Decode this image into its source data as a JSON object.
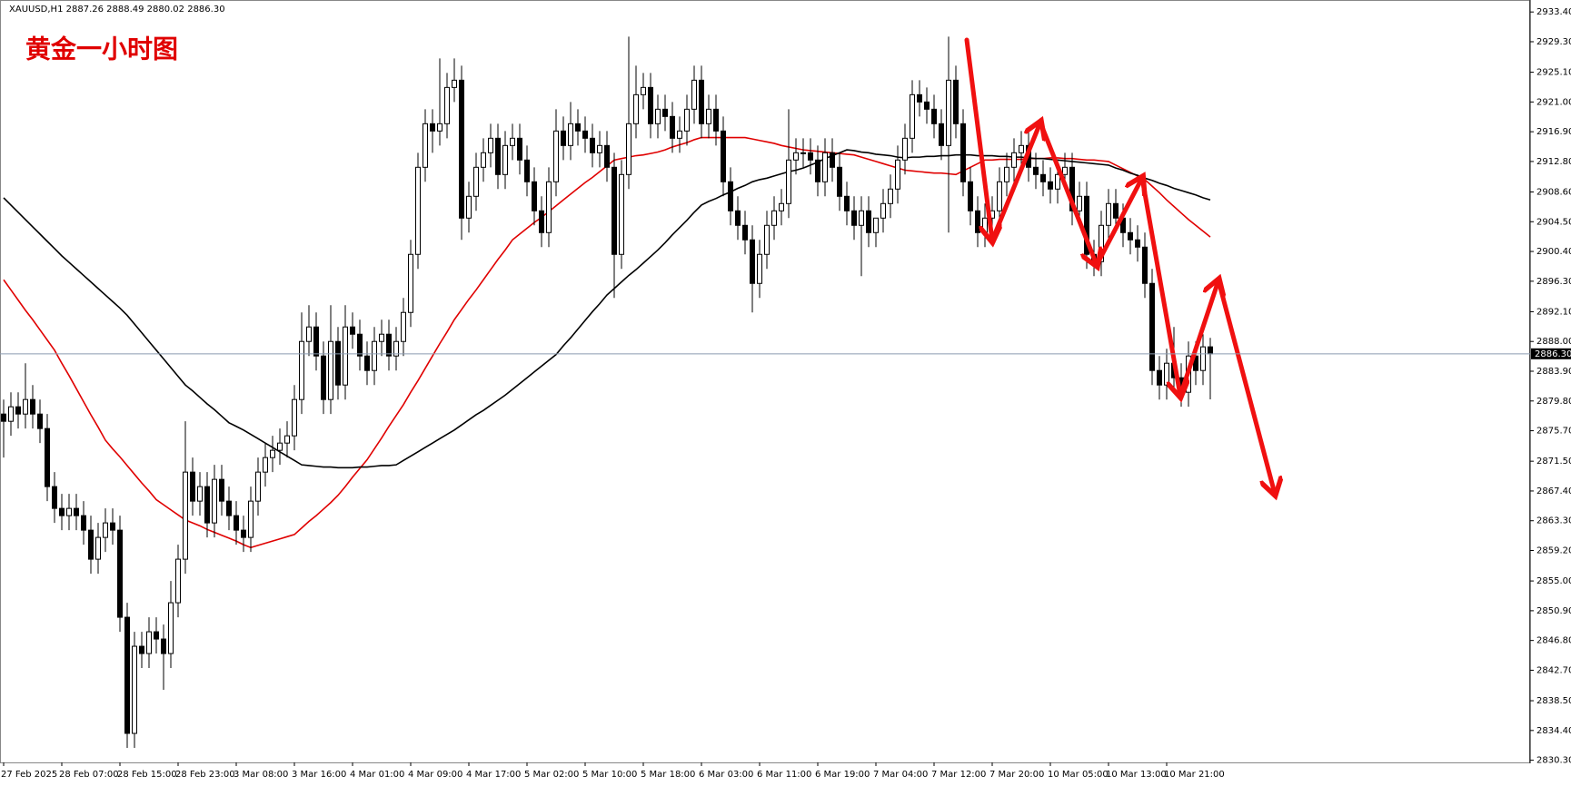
{
  "chart_data": {
    "type": "candlestick",
    "header": "XAUUSD,H1  2887.26 2888.49 2880.02 2886.30",
    "title": "黄金一小时图",
    "ylim": [
      2830.0,
      2934.8
    ],
    "yticks": [
      {
        "value": 2933.4,
        "label": "2933.40"
      },
      {
        "value": 2929.3,
        "label": "2929.30"
      },
      {
        "value": 2925.1,
        "label": "2925.10"
      },
      {
        "value": 2921.0,
        "label": "2921.00"
      },
      {
        "value": 2916.9,
        "label": "2916.90"
      },
      {
        "value": 2912.8,
        "label": "2912.80"
      },
      {
        "value": 2908.6,
        "label": "2908.60"
      },
      {
        "value": 2904.5,
        "label": "2904.50"
      },
      {
        "value": 2900.4,
        "label": "2900.40"
      },
      {
        "value": 2896.3,
        "label": "2896.30"
      },
      {
        "value": 2892.1,
        "label": "2892.10"
      },
      {
        "value": 2888.0,
        "label": "2888.00"
      },
      {
        "value": 2883.9,
        "label": "2883.90"
      },
      {
        "value": 2879.8,
        "label": "2879.80"
      },
      {
        "value": 2875.7,
        "label": "2875.70"
      },
      {
        "value": 2871.5,
        "label": "2871.50"
      },
      {
        "value": 2867.4,
        "label": "2867.40"
      },
      {
        "value": 2863.3,
        "label": "2863.30"
      },
      {
        "value": 2859.2,
        "label": "2859.20"
      },
      {
        "value": 2855.0,
        "label": "2855.00"
      },
      {
        "value": 2850.9,
        "label": "2850.90"
      },
      {
        "value": 2846.8,
        "label": "2846.80"
      },
      {
        "value": 2842.7,
        "label": "2842.70"
      },
      {
        "value": 2838.5,
        "label": "2838.50"
      },
      {
        "value": 2834.4,
        "label": "2834.40"
      },
      {
        "value": 2830.3,
        "label": "2830.30"
      }
    ],
    "price_line": {
      "value": 2886.3,
      "label": "2886.30"
    },
    "categories": [
      "27 Feb 2025",
      null,
      null,
      null,
      null,
      null,
      null,
      null,
      "28 Feb 07:00",
      null,
      null,
      null,
      null,
      null,
      null,
      null,
      "28 Feb 15:00",
      null,
      null,
      null,
      null,
      null,
      null,
      null,
      "28 Feb 23:00",
      null,
      null,
      null,
      null,
      null,
      null,
      null,
      "3 Mar 08:00",
      null,
      null,
      null,
      null,
      null,
      null,
      null,
      "3 Mar 16:00",
      null,
      null,
      null,
      null,
      null,
      null,
      null,
      "4 Mar 01:00",
      null,
      null,
      null,
      null,
      null,
      null,
      null,
      "4 Mar 09:00",
      null,
      null,
      null,
      null,
      null,
      null,
      null,
      "4 Mar 17:00",
      null,
      null,
      null,
      null,
      null,
      null,
      null,
      "5 Mar 02:00",
      null,
      null,
      null,
      null,
      null,
      null,
      null,
      "5 Mar 10:00",
      null,
      null,
      null,
      null,
      null,
      null,
      null,
      "5 Mar 18:00",
      null,
      null,
      null,
      null,
      null,
      null,
      null,
      "6 Mar 03:00",
      null,
      null,
      null,
      null,
      null,
      null,
      null,
      "6 Mar 11:00",
      null,
      null,
      null,
      null,
      null,
      null,
      null,
      "6 Mar 19:00",
      null,
      null,
      null,
      null,
      null,
      null,
      null,
      "7 Mar 04:00",
      null,
      null,
      null,
      null,
      null,
      null,
      null,
      "7 Mar 12:00",
      null,
      null,
      null,
      null,
      null,
      null,
      null,
      "7 Mar 20:00",
      null,
      null,
      null,
      null,
      null,
      null,
      null,
      "10 Mar 05:00",
      null,
      null,
      null,
      null,
      null,
      null,
      null,
      "10 Mar 13:00",
      null,
      null,
      null,
      null,
      null,
      null,
      null,
      "10 Mar 21:00",
      null,
      null,
      null,
      null,
      null,
      null
    ],
    "open": [
      2878,
      2877,
      2879,
      2878,
      2880,
      2878,
      2876,
      2868,
      2865,
      2864,
      2865,
      2864,
      2862,
      2858,
      2861,
      2863,
      2862,
      2850,
      2834,
      2846,
      2845,
      2848,
      2847,
      2845,
      2852,
      2858,
      2870,
      2866,
      2868,
      2863,
      2869,
      2866,
      2864,
      2862,
      2861,
      2866,
      2870,
      2872,
      2873,
      2874,
      2875,
      2880,
      2888,
      2890,
      2886,
      2880,
      2888,
      2882,
      2890,
      2889,
      2886,
      2884,
      2888,
      2889,
      2886,
      2888,
      2892,
      2900,
      2912,
      2918,
      2917,
      2918,
      2923,
      2924,
      2905,
      2908,
      2912,
      2914,
      2916,
      2911,
      2915,
      2916,
      2913,
      2910,
      2906,
      2903,
      2910,
      2917,
      2915,
      2918,
      2917,
      2916,
      2914,
      2915,
      2912,
      2900,
      2911,
      2918,
      2922,
      2923,
      2918,
      2920,
      2919,
      2916,
      2917,
      2920,
      2924,
      2918,
      2920,
      2917,
      2910,
      2906,
      2904,
      2902,
      2896,
      2900,
      2904,
      2906,
      2907,
      2913,
      2914,
      2914,
      2913,
      2910,
      2914,
      2912,
      2908,
      2906,
      2904,
      2906,
      2903,
      2905,
      2907,
      2909,
      2913,
      2916,
      2922,
      2921,
      2920,
      2918,
      2915,
      2924,
      2918,
      2910,
      2906,
      2903,
      2905,
      2906,
      2910,
      2912,
      2914,
      2915,
      2912,
      2911,
      2910,
      2909,
      2911,
      2912,
      2906,
      2908,
      2900,
      2899,
      2904,
      2907,
      2905,
      2903,
      2902,
      2901,
      2896,
      2884,
      2882,
      2885,
      2883,
      2881,
      2886,
      2884,
      2887.26
    ],
    "high": [
      2880,
      2881,
      2881,
      2885,
      2882,
      2880,
      2878,
      2870,
      2867,
      2867,
      2867,
      2866,
      2864,
      2863,
      2865,
      2865,
      2864,
      2852,
      2848,
      2848,
      2850,
      2850,
      2849,
      2855,
      2860,
      2877,
      2872,
      2870,
      2870,
      2871,
      2871,
      2868,
      2866,
      2864,
      2868,
      2872,
      2874,
      2875,
      2876,
      2877,
      2882,
      2892,
      2893,
      2892,
      2888,
      2893,
      2890,
      2893,
      2892,
      2891,
      2888,
      2890,
      2891,
      2891,
      2890,
      2894,
      2902,
      2914,
      2920,
      2920,
      2927,
      2925,
      2927,
      2926,
      2910,
      2914,
      2916,
      2918,
      2918,
      2917,
      2918,
      2918,
      2915,
      2912,
      2908,
      2912,
      2920,
      2919,
      2921,
      2920,
      2919,
      2918,
      2917,
      2917,
      2914,
      2913,
      2930,
      2926,
      2925,
      2925,
      2922,
      2922,
      2921,
      2919,
      2922,
      2926,
      2926,
      2922,
      2922,
      2919,
      2912,
      2908,
      2906,
      2904,
      2902,
      2906,
      2908,
      2909,
      2920,
      2916,
      2916,
      2916,
      2915,
      2916,
      2916,
      2914,
      2910,
      2908,
      2908,
      2908,
      2905,
      2909,
      2911,
      2915,
      2918,
      2924,
      2924,
      2923,
      2922,
      2920,
      2930,
      2926,
      2920,
      2912,
      2908,
      2907,
      2908,
      2912,
      2914,
      2916,
      2917,
      2917,
      2914,
      2913,
      2912,
      2913,
      2914,
      2914,
      2910,
      2910,
      2902,
      2906,
      2909,
      2909,
      2907,
      2905,
      2904,
      2903,
      2898,
      2886,
      2887,
      2890,
      2885,
      2888,
      2888,
      2889,
      2888.49
    ],
    "low": [
      2872,
      2875,
      2876,
      2876,
      2876,
      2874,
      2866,
      2863,
      2862,
      2862,
      2862,
      2860,
      2856,
      2856,
      2859,
      2860,
      2848,
      2832,
      2832,
      2843,
      2843,
      2845,
      2840,
      2843,
      2850,
      2856,
      2864,
      2864,
      2861,
      2861,
      2864,
      2862,
      2860,
      2859,
      2859,
      2864,
      2868,
      2870,
      2871,
      2872,
      2873,
      2878,
      2886,
      2884,
      2878,
      2878,
      2880,
      2880,
      2887,
      2884,
      2882,
      2882,
      2886,
      2884,
      2884,
      2886,
      2890,
      2898,
      2910,
      2914,
      2915,
      2916,
      2921,
      2902,
      2903,
      2906,
      2910,
      2912,
      2909,
      2909,
      2913,
      2911,
      2908,
      2904,
      2901,
      2901,
      2908,
      2913,
      2913,
      2915,
      2914,
      2912,
      2912,
      2910,
      2894,
      2898,
      2909,
      2916,
      2920,
      2916,
      2916,
      2917,
      2914,
      2914,
      2915,
      2918,
      2916,
      2916,
      2915,
      2908,
      2904,
      2902,
      2900,
      2892,
      2894,
      2898,
      2902,
      2904,
      2905,
      2911,
      2912,
      2911,
      2908,
      2908,
      2910,
      2906,
      2904,
      2902,
      2897,
      2901,
      2901,
      2903,
      2905,
      2907,
      2911,
      2914,
      2919,
      2918,
      2916,
      2913,
      2903,
      2916,
      2908,
      2904,
      2901,
      2901,
      2903,
      2904,
      2908,
      2910,
      2912,
      2910,
      2909,
      2908,
      2907,
      2907,
      2909,
      2904,
      2904,
      2898,
      2897,
      2897,
      2902,
      2903,
      2901,
      2900,
      2899,
      2894,
      2882,
      2880,
      2880,
      2881,
      2879,
      2879,
      2882,
      2882,
      2880.02
    ],
    "close": [
      2877,
      2879,
      2878,
      2880,
      2878,
      2876,
      2868,
      2865,
      2864,
      2865,
      2864,
      2862,
      2858,
      2861,
      2863,
      2862,
      2850,
      2834,
      2846,
      2845,
      2848,
      2847,
      2845,
      2852,
      2858,
      2870,
      2866,
      2868,
      2863,
      2869,
      2866,
      2864,
      2862,
      2861,
      2866,
      2870,
      2872,
      2873,
      2874,
      2875,
      2880,
      2888,
      2890,
      2886,
      2880,
      2888,
      2882,
      2890,
      2889,
      2886,
      2884,
      2888,
      2889,
      2886,
      2888,
      2892,
      2900,
      2912,
      2918,
      2917,
      2918,
      2923,
      2924,
      2905,
      2908,
      2912,
      2914,
      2916,
      2911,
      2915,
      2916,
      2913,
      2910,
      2906,
      2903,
      2910,
      2917,
      2915,
      2918,
      2917,
      2916,
      2914,
      2915,
      2912,
      2900,
      2911,
      2918,
      2922,
      2923,
      2918,
      2920,
      2919,
      2916,
      2917,
      2920,
      2924,
      2918,
      2920,
      2917,
      2910,
      2906,
      2904,
      2902,
      2896,
      2900,
      2904,
      2906,
      2907,
      2913,
      2914,
      2914,
      2913,
      2910,
      2914,
      2912,
      2908,
      2906,
      2904,
      2906,
      2903,
      2905,
      2907,
      2909,
      2913,
      2916,
      2922,
      2921,
      2920,
      2918,
      2915,
      2924,
      2918,
      2910,
      2906,
      2903,
      2905,
      2906,
      2910,
      2912,
      2914,
      2915,
      2912,
      2911,
      2910,
      2909,
      2911,
      2912,
      2906,
      2908,
      2900,
      2899,
      2904,
      2907,
      2905,
      2903,
      2902,
      2901,
      2896,
      2884,
      2882,
      2885,
      2883,
      2881,
      2886,
      2884,
      2887.26,
      2886.3
    ],
    "series": [
      {
        "color": "#e00000",
        "values": [
          2896.5,
          2895.1,
          2893.7,
          2892.3,
          2891.0,
          2889.6,
          2888.2,
          2886.8,
          2885.0,
          2883.3,
          2881.5,
          2879.7,
          2877.9,
          2876.2,
          2874.4,
          2873.2,
          2872.1,
          2870.9,
          2869.7,
          2868.5,
          2867.4,
          2866.2,
          2865.5,
          2864.8,
          2864.1,
          2863.4,
          2863.0,
          2862.6,
          2862.1,
          2861.7,
          2861.3,
          2860.9,
          2860.5,
          2860.0,
          2859.6,
          2859.9,
          2860.2,
          2860.5,
          2860.8,
          2861.1,
          2861.4,
          2862.3,
          2863.2,
          2864.0,
          2864.9,
          2865.8,
          2866.8,
          2868.0,
          2869.3,
          2870.5,
          2871.7,
          2873.2,
          2874.7,
          2876.3,
          2877.8,
          2879.3,
          2881.0,
          2882.6,
          2884.3,
          2886.0,
          2887.7,
          2889.3,
          2891.0,
          2892.4,
          2893.8,
          2895.1,
          2896.5,
          2897.9,
          2899.3,
          2900.6,
          2902.0,
          2902.8,
          2903.6,
          2904.4,
          2905.1,
          2905.9,
          2906.7,
          2907.5,
          2908.3,
          2909.1,
          2909.9,
          2910.6,
          2911.4,
          2912.2,
          2913.0,
          2913.2,
          2913.4,
          2913.6,
          2913.7,
          2913.9,
          2914.1,
          2914.4,
          2914.8,
          2915.1,
          2915.4,
          2915.8,
          2916.1,
          2916.1,
          2916.1,
          2916.1,
          2916.1,
          2916.1,
          2916.1,
          2915.9,
          2915.7,
          2915.5,
          2915.3,
          2915.0,
          2914.8,
          2914.6,
          2914.4,
          2914.3,
          2914.2,
          2914.1,
          2914.0,
          2913.9,
          2913.8,
          2913.7,
          2913.4,
          2913.1,
          2912.8,
          2912.5,
          2912.2,
          2911.9,
          2911.6,
          2911.5,
          2911.4,
          2911.3,
          2911.2,
          2911.2,
          2911.1,
          2911.0,
          2911.5,
          2912.0,
          2912.5,
          2913.0,
          2913.0,
          2913.1,
          2913.1,
          2913.1,
          2913.1,
          2913.2,
          2913.2,
          2913.2,
          2913.3,
          2913.3,
          2913.2,
          2913.2,
          2913.1,
          2913.0,
          2913.0,
          2912.9,
          2912.8,
          2912.3,
          2911.8,
          2911.3,
          2910.8,
          2910.3,
          2909.4,
          2908.5,
          2907.5,
          2906.6,
          2905.7,
          2904.8,
          2904.0,
          2903.2,
          2902.4
        ]
      },
      {
        "color": "#000000",
        "values": [
          2907.8,
          2906.8,
          2905.8,
          2904.8,
          2903.8,
          2902.8,
          2901.8,
          2900.8,
          2899.8,
          2898.9,
          2898.0,
          2897.1,
          2896.2,
          2895.3,
          2894.4,
          2893.5,
          2892.6,
          2891.6,
          2890.4,
          2889.2,
          2888.0,
          2886.8,
          2885.6,
          2884.4,
          2883.2,
          2882.0,
          2881.2,
          2880.3,
          2879.4,
          2878.6,
          2877.7,
          2876.8,
          2876.3,
          2875.8,
          2875.2,
          2874.6,
          2874.0,
          2873.4,
          2872.8,
          2872.2,
          2871.6,
          2871.0,
          2870.9,
          2870.8,
          2870.7,
          2870.7,
          2870.6,
          2870.6,
          2870.6,
          2870.7,
          2870.7,
          2870.8,
          2870.9,
          2870.9,
          2871.0,
          2871.6,
          2872.2,
          2872.8,
          2873.4,
          2874.0,
          2874.6,
          2875.2,
          2875.8,
          2876.5,
          2877.2,
          2877.9,
          2878.5,
          2879.2,
          2879.9,
          2880.6,
          2881.4,
          2882.2,
          2883.0,
          2883.8,
          2884.6,
          2885.4,
          2886.2,
          2887.4,
          2888.5,
          2889.7,
          2890.9,
          2892.1,
          2893.2,
          2894.4,
          2895.3,
          2896.2,
          2897.1,
          2897.9,
          2898.8,
          2899.7,
          2900.6,
          2901.6,
          2902.7,
          2903.7,
          2904.7,
          2905.8,
          2906.8,
          2907.3,
          2907.7,
          2908.2,
          2908.6,
          2909.1,
          2909.5,
          2910.0,
          2910.3,
          2910.5,
          2910.8,
          2911.1,
          2911.4,
          2911.6,
          2911.9,
          2912.3,
          2912.7,
          2913.2,
          2913.6,
          2914.0,
          2914.4,
          2914.3,
          2914.1,
          2914.0,
          2913.8,
          2913.7,
          2913.6,
          2913.4,
          2913.3,
          2913.4,
          2913.4,
          2913.5,
          2913.5,
          2913.6,
          2913.6,
          2913.7,
          2913.7,
          2913.7,
          2913.6,
          2913.6,
          2913.6,
          2913.5,
          2913.5,
          2913.4,
          2913.4,
          2913.3,
          2913.2,
          2913.2,
          2913.1,
          2913.0,
          2912.9,
          2912.8,
          2912.7,
          2912.6,
          2912.5,
          2912.4,
          2912.3,
          2911.9,
          2911.6,
          2911.2,
          2910.9,
          2910.5,
          2910.2,
          2909.8,
          2909.5,
          2909.1,
          2908.8,
          2908.5,
          2908.2,
          2907.8,
          2907.5
        ]
      }
    ]
  }
}
